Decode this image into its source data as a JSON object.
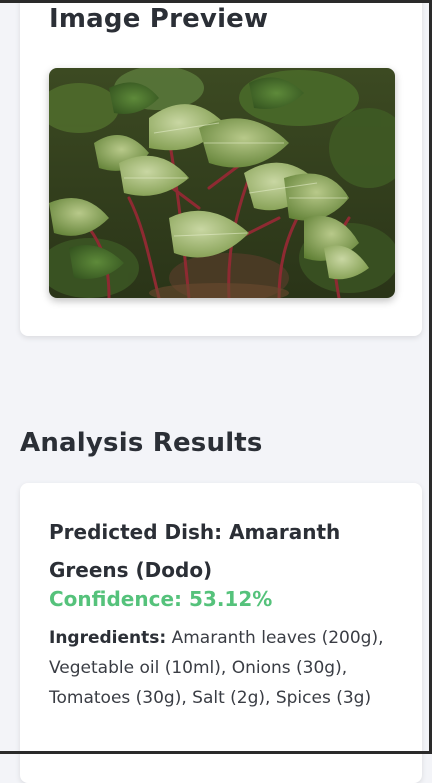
{
  "preview": {
    "title": "Image Preview",
    "image_description_icon": "leafy-plant-photo"
  },
  "results": {
    "title": "Analysis Results",
    "dish": "Predicted Dish: Amaranth Greens (Dodo)",
    "confidence": "Confidence: 53.12%",
    "ingredients_label": "Ingredients:",
    "ingredients_text": " Amaranth leaves (200g), Vegetable oil (10ml), Onions (30g), Tomatoes (30g), Salt (2g), Spices (3g)"
  },
  "colors": {
    "confidence": "#55c27b",
    "background": "#f3f4f8",
    "card": "#ffffff"
  }
}
